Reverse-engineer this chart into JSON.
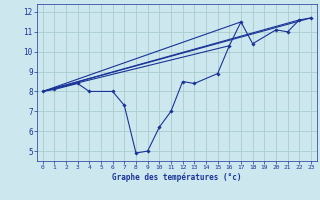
{
  "xlabel": "Graphe des températures (°c)",
  "background_color": "#cce8ee",
  "grid_color": "#aacccc",
  "line_color": "#1a3399",
  "xlim": [
    -0.5,
    23.5
  ],
  "ylim": [
    4.5,
    12.4
  ],
  "xticks": [
    0,
    1,
    2,
    3,
    4,
    5,
    6,
    7,
    8,
    9,
    10,
    11,
    12,
    13,
    14,
    15,
    16,
    17,
    18,
    19,
    20,
    21,
    22,
    23
  ],
  "yticks": [
    5,
    6,
    7,
    8,
    9,
    10,
    11,
    12
  ],
  "main_series_x": [
    0,
    1,
    3,
    4,
    6,
    7,
    8,
    9,
    10,
    11,
    12,
    13,
    15,
    16,
    17,
    18,
    20,
    21,
    22,
    23
  ],
  "main_series_y": [
    8.0,
    8.1,
    8.4,
    8.0,
    8.0,
    7.3,
    4.9,
    5.0,
    6.2,
    7.0,
    8.5,
    8.4,
    8.9,
    10.3,
    11.5,
    10.4,
    11.1,
    11.0,
    11.6,
    11.7
  ],
  "trend_lines": [
    {
      "x": [
        0,
        23
      ],
      "y": [
        8.0,
        11.7
      ]
    },
    {
      "x": [
        0,
        22
      ],
      "y": [
        8.0,
        11.6
      ]
    },
    {
      "x": [
        0,
        17
      ],
      "y": [
        8.0,
        11.5
      ]
    },
    {
      "x": [
        0,
        16
      ],
      "y": [
        8.0,
        10.3
      ]
    }
  ]
}
